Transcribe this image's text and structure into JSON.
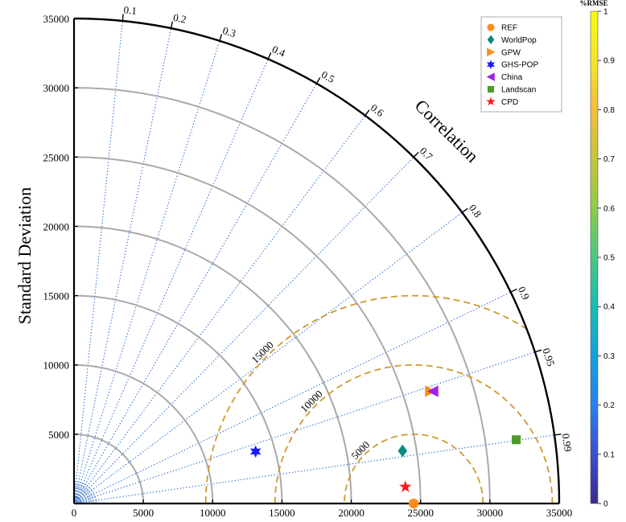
{
  "chart_data": {
    "type": "taylor_diagram",
    "title": "",
    "ylabel": "Standard Deviation",
    "arc_label": "Correlation",
    "std_range": [
      0,
      35000
    ],
    "std_ticks": [
      0,
      5000,
      10000,
      15000,
      20000,
      25000,
      30000,
      35000
    ],
    "std_tick_labels": [
      "0",
      "5000",
      "10000",
      "15000",
      "20000",
      "25000",
      "30000",
      "35000"
    ],
    "correlation_ticks": [
      "0.1",
      "0.2",
      "0.3",
      "0.4",
      "0.5",
      "0.6",
      "0.7",
      "0.8",
      "0.9",
      "0.95",
      "0.99"
    ],
    "correlation_values": [
      0.1,
      0.2,
      0.3,
      0.4,
      0.5,
      0.6,
      0.7,
      0.8,
      0.9,
      0.95,
      0.99
    ],
    "std_arcs": [
      5000,
      10000,
      15000,
      20000,
      25000,
      30000
    ],
    "rmse_center_std": 24500,
    "rmse_arcs": [
      5000,
      10000,
      15000
    ],
    "rmse_labels": [
      "5000",
      "10000",
      "15000"
    ],
    "colorbar": {
      "label": "%RMSE",
      "range": [
        0,
        1
      ],
      "ticks": [
        "0",
        "0.1",
        "0.2",
        "0.3",
        "0.4",
        "0.5",
        "0.6",
        "0.7",
        "0.8",
        "0.9",
        "1"
      ],
      "colors": [
        "#3b2b8e",
        "#3a4fd0",
        "#2a7ff0",
        "#14a3dc",
        "#19bcb0",
        "#4ac77f",
        "#8ccc4a",
        "#c6c43a",
        "#f4bd3c",
        "#f5e52a",
        "#f9fb0e"
      ]
    },
    "legend_position": "top-right",
    "series": [
      {
        "name": "REF",
        "x": 24500,
        "y": 0,
        "marker": "circle",
        "color": "#ff8c1a"
      },
      {
        "name": "WorldPop",
        "x": 23700,
        "y": 3800,
        "marker": "diamond",
        "color": "#0f8a80"
      },
      {
        "name": "GPW",
        "x": 25700,
        "y": 8100,
        "marker": "triangle-right",
        "color": "#ff8c1a"
      },
      {
        "name": "GHS-POP",
        "x": 13100,
        "y": 3750,
        "marker": "star6",
        "color": "#1a1aff"
      },
      {
        "name": "China",
        "x": 25900,
        "y": 8100,
        "marker": "triangle-left",
        "color": "#a020f0"
      },
      {
        "name": "Landscan",
        "x": 31900,
        "y": 4600,
        "marker": "square",
        "color": "#4f9a2a"
      },
      {
        "name": "CPD",
        "x": 23900,
        "y": 1200,
        "marker": "star5",
        "color": "#ff1a1a"
      }
    ]
  }
}
